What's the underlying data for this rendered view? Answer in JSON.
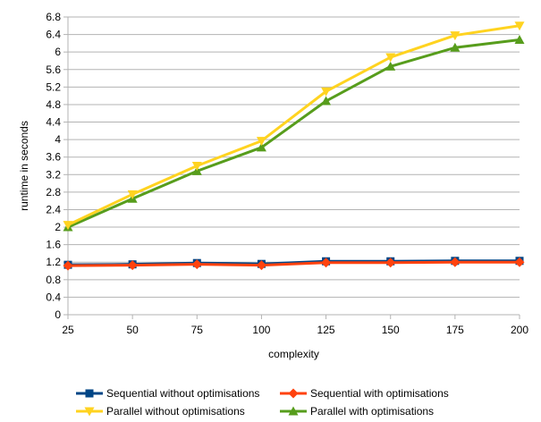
{
  "chart_data": {
    "type": "line",
    "title": "",
    "xlabel": "complexity",
    "ylabel": "runtime in seconds",
    "x": [
      25,
      50,
      75,
      100,
      125,
      150,
      175,
      200
    ],
    "xticks": [
      "25",
      "50",
      "75",
      "100",
      "125",
      "150",
      "175",
      "200"
    ],
    "ylim": [
      0,
      6.8
    ],
    "yticks": [
      "0",
      "0.4",
      "0.8",
      "1.2",
      "1.6",
      "2",
      "2.4",
      "2.8",
      "3.2",
      "3.6",
      "4",
      "4.4",
      "4.8",
      "5.2",
      "5.6",
      "6",
      "6.4",
      "6.8"
    ],
    "grid": "horizontal",
    "legend_position": "bottom",
    "series": [
      {
        "name": "Sequential without optimisations",
        "color": "#004586",
        "marker": "square",
        "values": [
          1.14,
          1.15,
          1.18,
          1.16,
          1.22,
          1.22,
          1.23,
          1.23
        ]
      },
      {
        "name": "Sequential with optimisations",
        "color": "#ff420e",
        "marker": "diamond",
        "values": [
          1.12,
          1.13,
          1.15,
          1.13,
          1.19,
          1.19,
          1.2,
          1.2
        ]
      },
      {
        "name": "Parallel without optimisations",
        "color": "#ffd320",
        "marker": "triangle-down",
        "values": [
          2.05,
          2.75,
          3.4,
          3.97,
          5.1,
          5.88,
          6.38,
          6.6
        ]
      },
      {
        "name": "Parallel with optimisations",
        "color": "#579d1c",
        "marker": "triangle-up",
        "values": [
          2.0,
          2.65,
          3.28,
          3.82,
          4.88,
          5.67,
          6.1,
          6.28
        ]
      }
    ]
  }
}
